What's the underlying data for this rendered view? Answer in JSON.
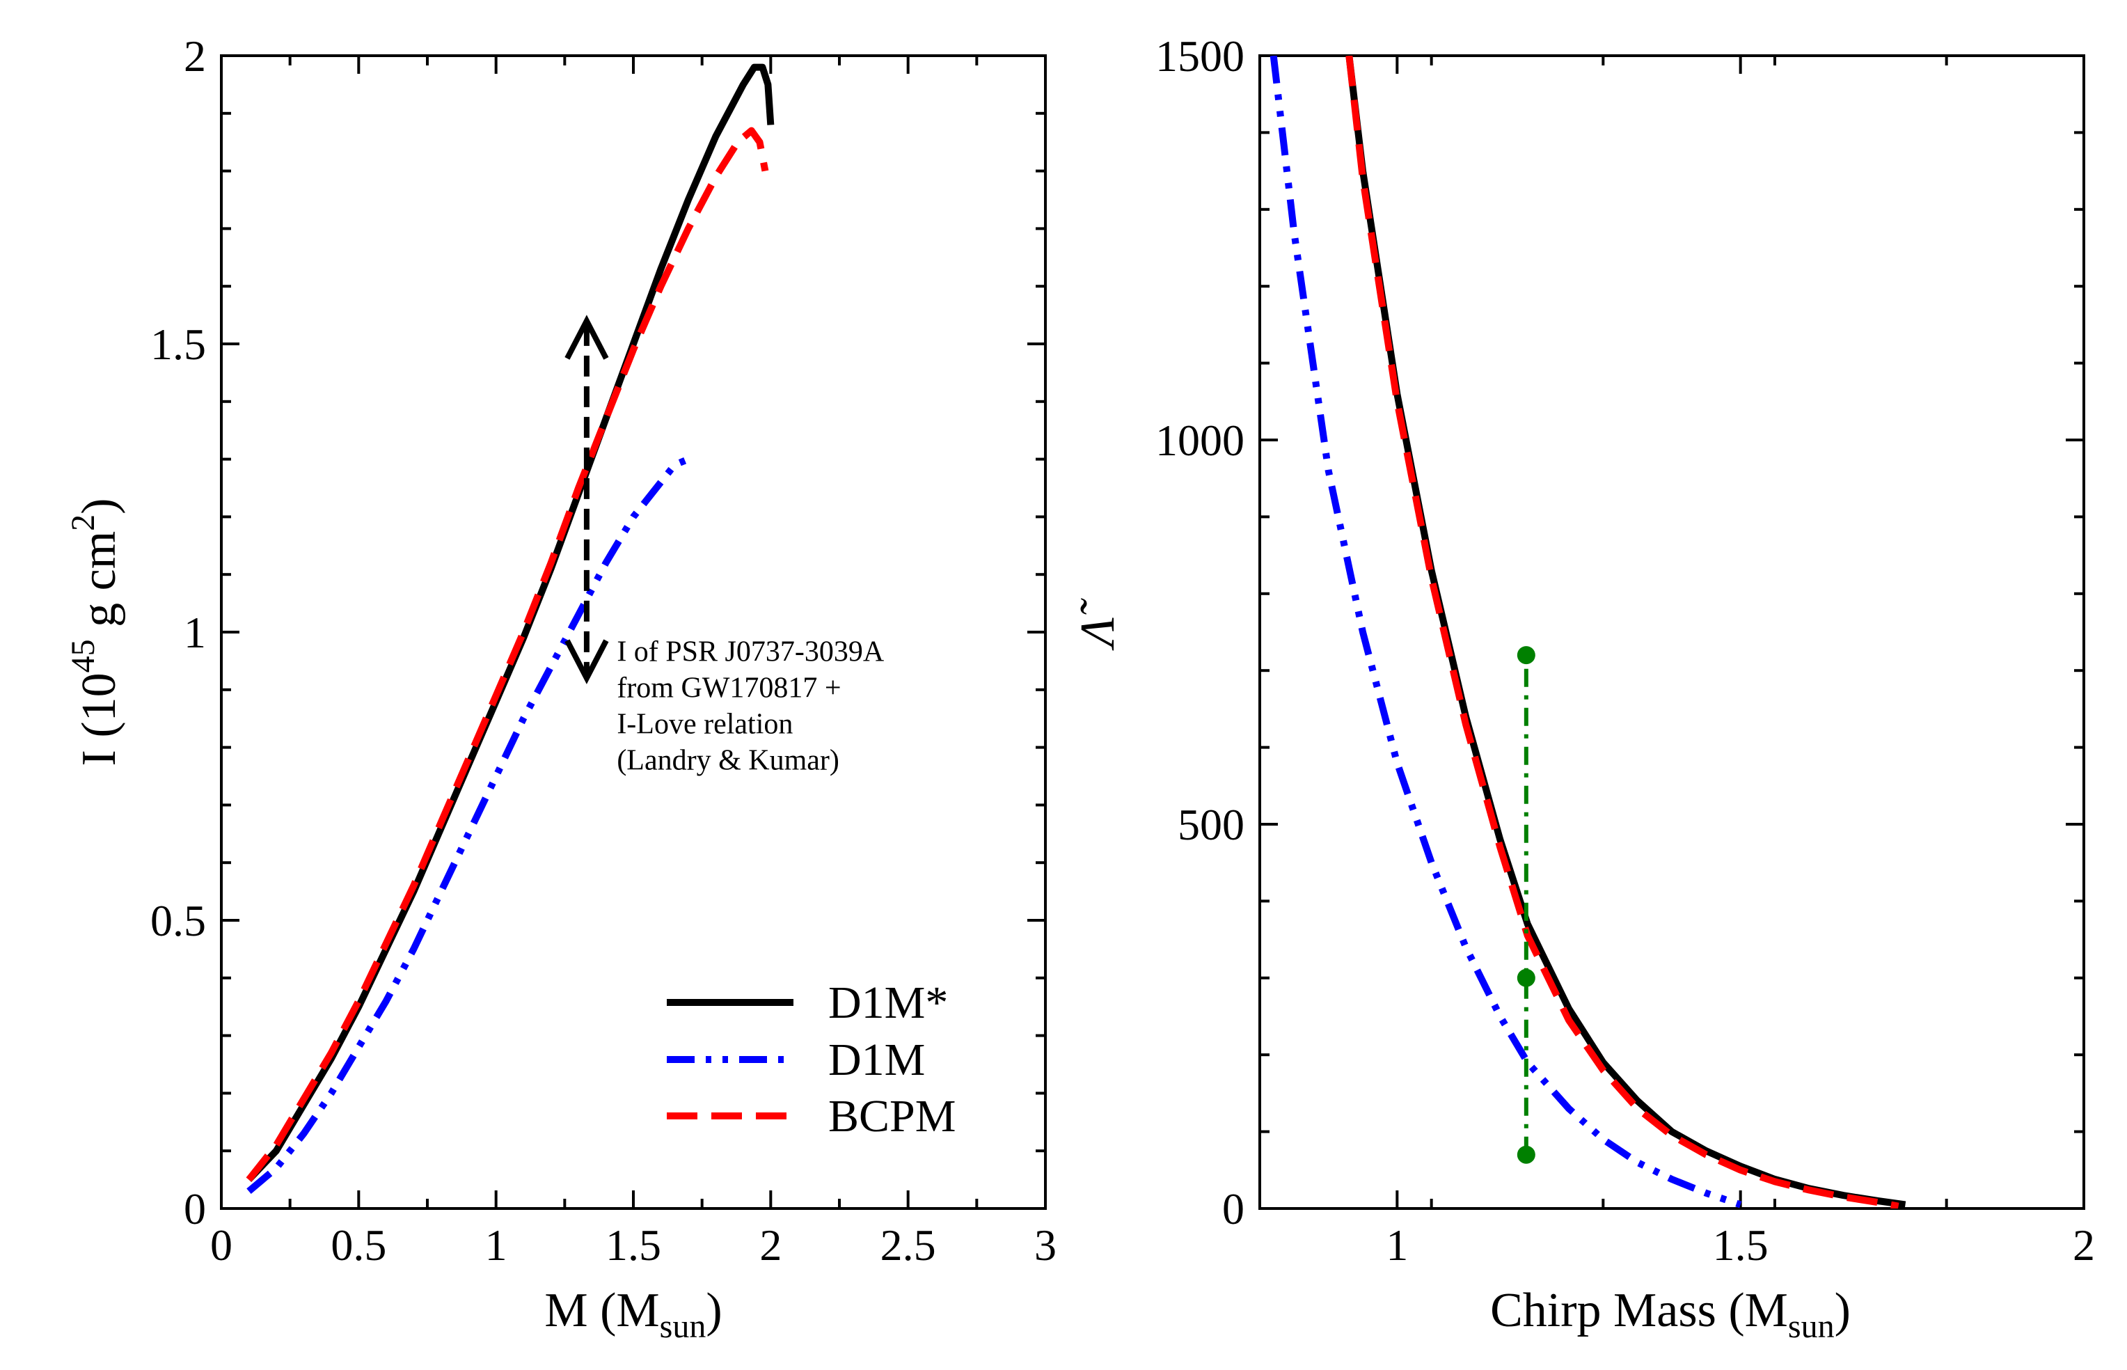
{
  "chart_data": [
    {
      "type": "line",
      "id": "left",
      "xlabel": "M (M",
      "xlabel_sub": "sun",
      "xlabel_close": ")",
      "ylabel_main": "I (10",
      "ylabel_sup": "45",
      "ylabel_mid": " g cm",
      "ylabel_sup2": "2",
      "ylabel_close": ")",
      "xlim": [
        0,
        3
      ],
      "ylim": [
        0,
        2
      ],
      "xticks": [
        0,
        0.5,
        1,
        1.5,
        2,
        2.5,
        3
      ],
      "xtick_labels": [
        "0",
        "0.5",
        "1",
        "1.5",
        "2",
        "2.5",
        "3"
      ],
      "yticks": [
        0,
        0.5,
        1,
        1.5,
        2
      ],
      "ytick_labels": [
        "0",
        "0.5",
        "1",
        "1.5",
        "2"
      ],
      "legend_position": "bottom-right",
      "series": [
        {
          "name": "D1M*",
          "color": "#000000",
          "style": "solid",
          "points": [
            [
              0.1,
              0.05
            ],
            [
              0.2,
              0.1
            ],
            [
              0.3,
              0.18
            ],
            [
              0.4,
              0.26
            ],
            [
              0.5,
              0.35
            ],
            [
              0.6,
              0.45
            ],
            [
              0.7,
              0.55
            ],
            [
              0.8,
              0.66
            ],
            [
              0.9,
              0.77
            ],
            [
              1.0,
              0.88
            ],
            [
              1.1,
              0.99
            ],
            [
              1.2,
              1.11
            ],
            [
              1.3,
              1.24
            ],
            [
              1.4,
              1.37
            ],
            [
              1.5,
              1.5
            ],
            [
              1.6,
              1.63
            ],
            [
              1.7,
              1.75
            ],
            [
              1.8,
              1.86
            ],
            [
              1.9,
              1.95
            ],
            [
              1.94,
              1.98
            ],
            [
              1.97,
              1.98
            ],
            [
              1.99,
              1.95
            ],
            [
              2.0,
              1.88
            ]
          ]
        },
        {
          "name": "D1M",
          "color": "#0000ff",
          "style": "dashdot",
          "points": [
            [
              0.1,
              0.03
            ],
            [
              0.2,
              0.07
            ],
            [
              0.3,
              0.13
            ],
            [
              0.4,
              0.2
            ],
            [
              0.5,
              0.28
            ],
            [
              0.6,
              0.36
            ],
            [
              0.7,
              0.45
            ],
            [
              0.8,
              0.55
            ],
            [
              0.9,
              0.65
            ],
            [
              1.0,
              0.75
            ],
            [
              1.1,
              0.85
            ],
            [
              1.2,
              0.94
            ],
            [
              1.3,
              1.03
            ],
            [
              1.4,
              1.12
            ],
            [
              1.5,
              1.2
            ],
            [
              1.6,
              1.26
            ],
            [
              1.65,
              1.29
            ],
            [
              1.7,
              1.3
            ]
          ]
        },
        {
          "name": "BCPM",
          "color": "#ff0000",
          "style": "dashed",
          "points": [
            [
              0.1,
              0.05
            ],
            [
              0.2,
              0.11
            ],
            [
              0.3,
              0.19
            ],
            [
              0.4,
              0.27
            ],
            [
              0.5,
              0.36
            ],
            [
              0.6,
              0.46
            ],
            [
              0.7,
              0.56
            ],
            [
              0.8,
              0.67
            ],
            [
              0.9,
              0.78
            ],
            [
              1.0,
              0.89
            ],
            [
              1.1,
              1.0
            ],
            [
              1.2,
              1.12
            ],
            [
              1.3,
              1.25
            ],
            [
              1.4,
              1.37
            ],
            [
              1.5,
              1.49
            ],
            [
              1.6,
              1.6
            ],
            [
              1.7,
              1.7
            ],
            [
              1.8,
              1.79
            ],
            [
              1.88,
              1.85
            ],
            [
              1.93,
              1.87
            ],
            [
              1.96,
              1.85
            ],
            [
              1.98,
              1.8
            ]
          ]
        }
      ],
      "annotation": {
        "lines": [
          "I of PSR J0737-3039A",
          "from GW170817 +",
          " I-Love relation",
          "(Landry & Kumar)"
        ],
        "arrow_x": 1.33,
        "arrow_y_range": [
          0.92,
          1.54
        ]
      }
    },
    {
      "type": "line",
      "id": "right",
      "xlabel": "Chirp Mass (M",
      "xlabel_sub": "sun",
      "xlabel_close": ")",
      "ylabel": "Λ̃",
      "xlim": [
        0.8,
        2
      ],
      "ylim": [
        0,
        1500
      ],
      "xticks": [
        1,
        1.5,
        2
      ],
      "xtick_labels": [
        "1",
        "1.5",
        "2"
      ],
      "yticks": [
        0,
        500,
        1000,
        1500
      ],
      "ytick_labels": [
        "0",
        "500",
        "1000",
        "1500"
      ],
      "series": [
        {
          "name": "D1M*",
          "color": "#000000",
          "style": "solid",
          "points": [
            [
              0.93,
              1500
            ],
            [
              0.95,
              1350
            ],
            [
              1.0,
              1060
            ],
            [
              1.05,
              830
            ],
            [
              1.1,
              640
            ],
            [
              1.15,
              480
            ],
            [
              1.19,
              370
            ],
            [
              1.25,
              260
            ],
            [
              1.3,
              190
            ],
            [
              1.35,
              140
            ],
            [
              1.4,
              100
            ],
            [
              1.45,
              75
            ],
            [
              1.5,
              55
            ],
            [
              1.55,
              38
            ],
            [
              1.6,
              26
            ],
            [
              1.65,
              17
            ],
            [
              1.7,
              10
            ],
            [
              1.74,
              5
            ]
          ]
        },
        {
          "name": "D1M",
          "color": "#0000ff",
          "style": "dashdot",
          "points": [
            [
              0.82,
              1500
            ],
            [
              0.85,
              1270
            ],
            [
              0.9,
              960
            ],
            [
              0.95,
              750
            ],
            [
              1.0,
              580
            ],
            [
              1.05,
              450
            ],
            [
              1.1,
              340
            ],
            [
              1.15,
              250
            ],
            [
              1.19,
              190
            ],
            [
              1.25,
              130
            ],
            [
              1.3,
              90
            ],
            [
              1.35,
              60
            ],
            [
              1.4,
              38
            ],
            [
              1.45,
              20
            ],
            [
              1.5,
              5
            ]
          ]
        },
        {
          "name": "BCPM",
          "color": "#ff0000",
          "style": "dashed",
          "points": [
            [
              0.93,
              1500
            ],
            [
              0.95,
              1340
            ],
            [
              1.0,
              1050
            ],
            [
              1.05,
              820
            ],
            [
              1.1,
              630
            ],
            [
              1.15,
              470
            ],
            [
              1.19,
              355
            ],
            [
              1.25,
              245
            ],
            [
              1.3,
              180
            ],
            [
              1.35,
              130
            ],
            [
              1.4,
              95
            ],
            [
              1.45,
              70
            ],
            [
              1.5,
              50
            ],
            [
              1.55,
              35
            ],
            [
              1.6,
              24
            ],
            [
              1.65,
              15
            ],
            [
              1.7,
              8
            ],
            [
              1.73,
              3
            ]
          ]
        }
      ],
      "constraint": {
        "color": "#008000",
        "x": 1.188,
        "points": [
          70,
          300,
          720
        ]
      }
    }
  ]
}
